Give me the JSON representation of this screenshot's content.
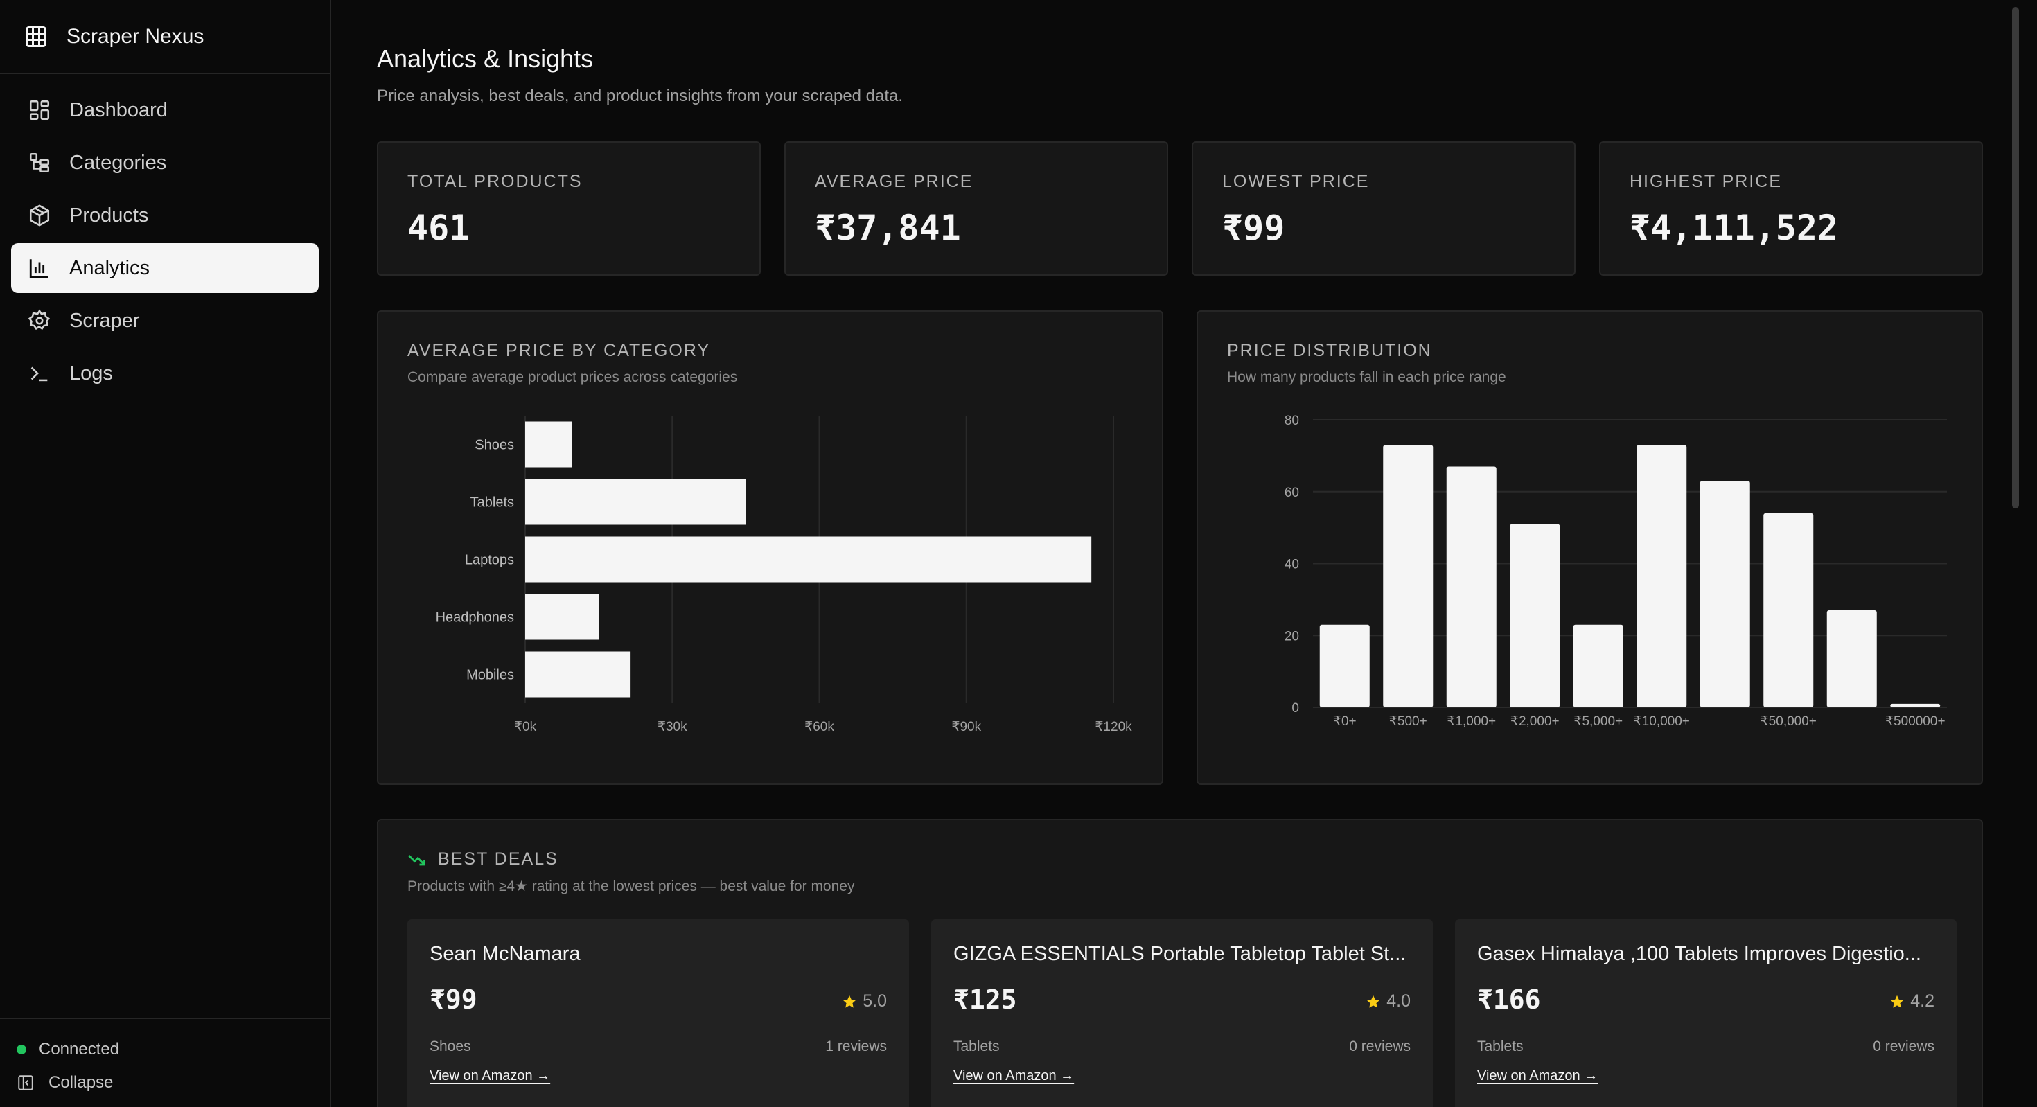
{
  "brand": {
    "name": "Scraper Nexus"
  },
  "nav": [
    {
      "label": "Dashboard",
      "icon": "dashboard-icon",
      "active": false
    },
    {
      "label": "Categories",
      "icon": "categories-icon",
      "active": false
    },
    {
      "label": "Products",
      "icon": "package-icon",
      "active": false
    },
    {
      "label": "Analytics",
      "icon": "bar-chart-icon",
      "active": true
    },
    {
      "label": "Scraper",
      "icon": "gear-icon",
      "active": false
    },
    {
      "label": "Logs",
      "icon": "terminal-icon",
      "active": false
    }
  ],
  "footer": {
    "status": "Connected",
    "status_color": "#22c55e",
    "collapse": "Collapse"
  },
  "header": {
    "title": "Analytics & Insights",
    "subtitle": "Price analysis, best deals, and product insights from your scraped data."
  },
  "stats": [
    {
      "label": "TOTAL PRODUCTS",
      "value": "461"
    },
    {
      "label": "AVERAGE PRICE",
      "value": "₹37,841"
    },
    {
      "label": "LOWEST PRICE",
      "value": "₹99"
    },
    {
      "label": "HIGHEST PRICE",
      "value": "₹4,111,522"
    }
  ],
  "chart_data": [
    {
      "type": "bar",
      "orientation": "horizontal",
      "title": "AVERAGE PRICE BY CATEGORY",
      "subtitle": "Compare average product prices across categories",
      "categories": [
        "Shoes",
        "Tablets",
        "Laptops",
        "Headphones",
        "Mobiles"
      ],
      "values": [
        9500,
        45000,
        115500,
        15000,
        21500
      ],
      "xlim": [
        0,
        120000
      ],
      "xticks": [
        0,
        30000,
        60000,
        90000,
        120000
      ],
      "xtick_labels": [
        "₹0k",
        "₹30k",
        "₹60k",
        "₹90k",
        "₹120k"
      ],
      "grid": true,
      "bar_color": "#f5f5f5"
    },
    {
      "type": "bar",
      "orientation": "vertical",
      "title": "PRICE DISTRIBUTION",
      "subtitle": "How many products fall in each price range",
      "categories": [
        "₹0+",
        "₹500+",
        "₹1,000+",
        "₹2,000+",
        "₹5,000+",
        "₹10,000+",
        "",
        "₹50,000+",
        "",
        "₹500000+"
      ],
      "values": [
        23,
        73,
        67,
        51,
        23,
        73,
        63,
        54,
        27,
        1
      ],
      "ylim": [
        0,
        80
      ],
      "yticks": [
        0,
        20,
        40,
        60,
        80
      ],
      "grid": true,
      "bar_color": "#f5f5f5"
    }
  ],
  "deals": {
    "title": "BEST DEALS",
    "subtitle": "Products with ≥4★ rating at the lowest prices — best value for money",
    "items": [
      {
        "name": "Sean McNamara",
        "price": "₹99",
        "rating": "5.0",
        "category": "Shoes",
        "reviews": "1 reviews",
        "link": "View on Amazon →"
      },
      {
        "name": "GIZGA ESSENTIALS Portable Tabletop Tablet St...",
        "price": "₹125",
        "rating": "4.0",
        "category": "Tablets",
        "reviews": "0 reviews",
        "link": "View on Amazon →"
      },
      {
        "name": "Gasex Himalaya ,100 Tablets Improves Digestio...",
        "price": "₹166",
        "rating": "4.2",
        "category": "Tablets",
        "reviews": "0 reviews",
        "link": "View on Amazon →"
      }
    ],
    "star_color": "#facc15",
    "trend_color": "#22c55e"
  }
}
